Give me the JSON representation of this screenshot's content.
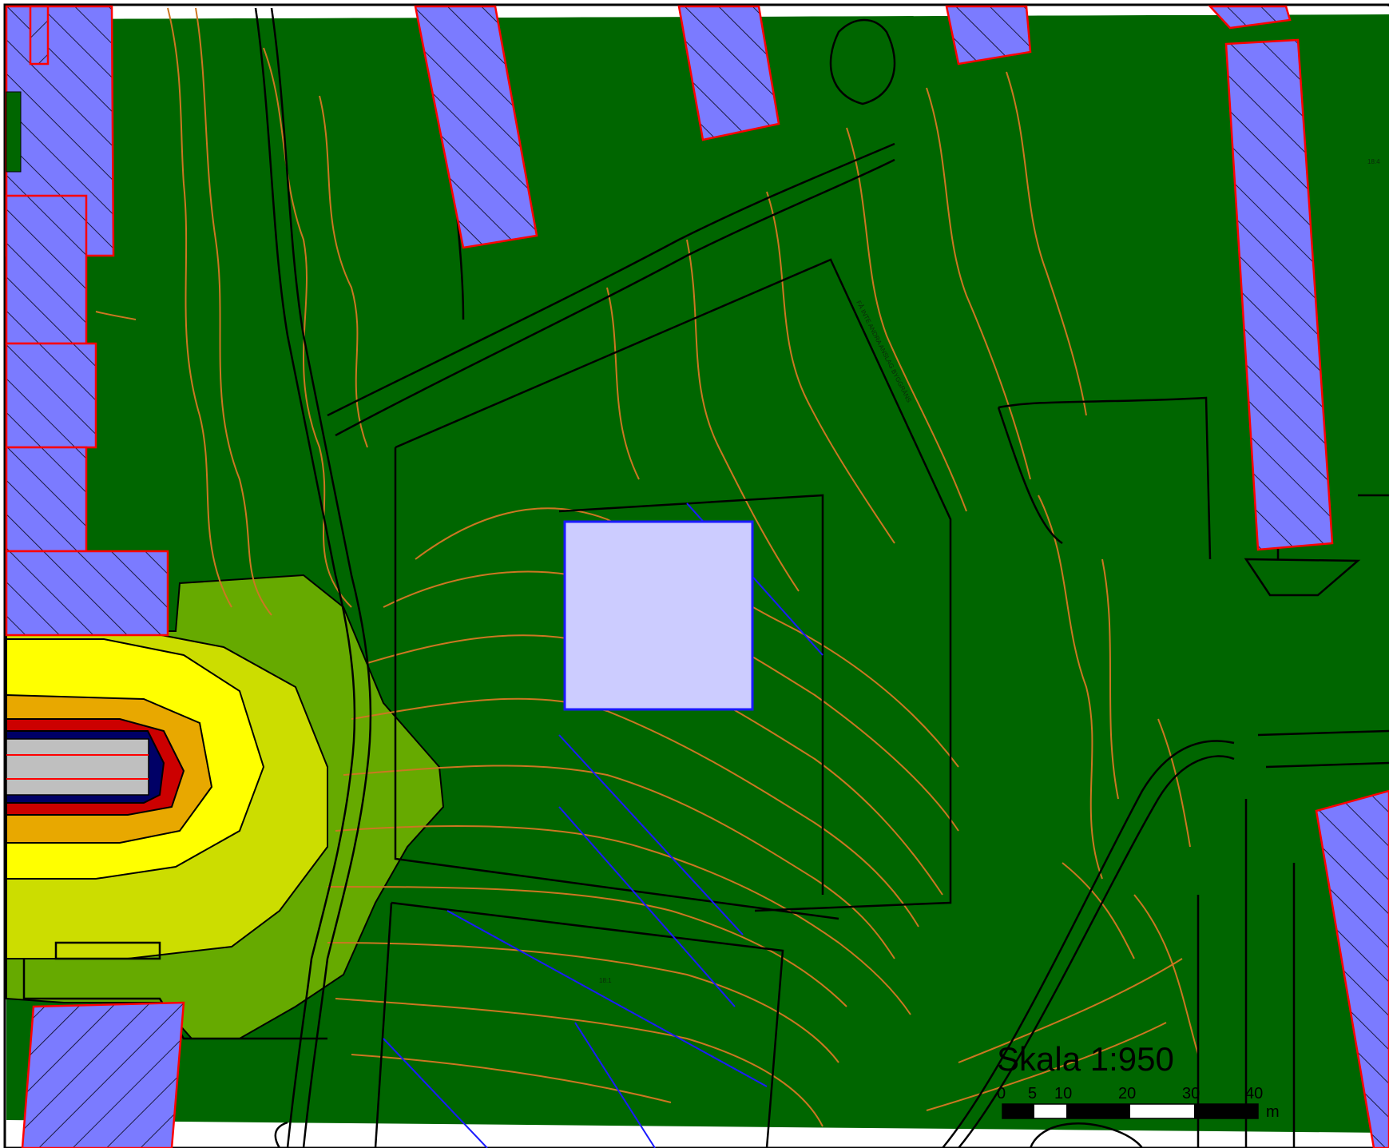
{
  "scale": {
    "title": "Skala 1:950",
    "ticks": [
      "0",
      "5",
      "10",
      "20",
      "30",
      "40"
    ],
    "unit": "m"
  },
  "labels": {
    "parcel_a": "18:1",
    "parcel_b": "18:4",
    "boundary_note": "FÅ INTE ANDRA ANSLAG BYGGRÄNS"
  },
  "colors": {
    "ground": "#006600",
    "building_fill": "#7b7bff",
    "building_outline": "#ff0000",
    "contour": "#cc7722",
    "line": "#000000",
    "planned_fill": "#ccccff",
    "planned_outline": "#1a1aff",
    "zone_light_green": "#66aa00",
    "zone_yellow_green": "#ccdd00",
    "zone_yellow": "#ffff00",
    "zone_orange": "#e8a800",
    "zone_red": "#cc0000",
    "zone_navy": "#000066",
    "road_grey": "#bfbfbf"
  }
}
